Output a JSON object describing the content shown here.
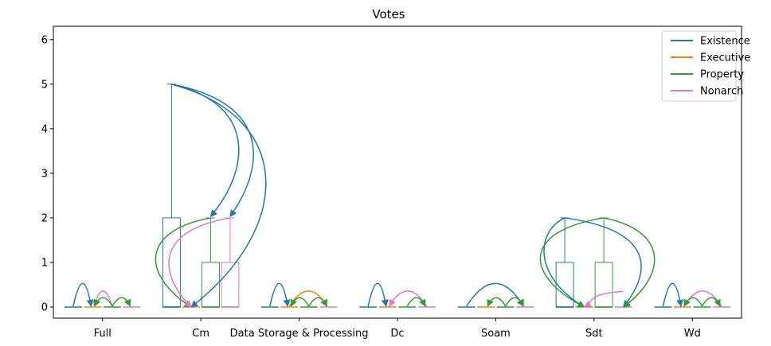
{
  "chart_data": {
    "type": "box",
    "title": "Votes",
    "categories": [
      "Full",
      "Cm",
      "Data Storage & Processing",
      "Dc",
      "Soam",
      "Sdt",
      "Wd"
    ],
    "ylim": [
      -0.25,
      6.3
    ],
    "yticks": [
      0,
      1,
      2,
      3,
      4,
      5,
      6
    ],
    "legend_position": "top-right",
    "series": [
      {
        "name": "Existence",
        "color": "#1f77b4"
      },
      {
        "name": "Executive",
        "color": "#ff7f0e"
      },
      {
        "name": "Property",
        "color": "#2ca02c"
      },
      {
        "name": "Nonarch",
        "color": "#e377c2"
      }
    ],
    "boxes": [
      {
        "category": "Cm",
        "series": "Existence",
        "q1": 0,
        "median": 0,
        "q3": 2,
        "whisker_high": 5
      },
      {
        "category": "Cm",
        "series": "Property",
        "q1": 0,
        "median": 0,
        "q3": 1,
        "whisker_high": 2
      },
      {
        "category": "Cm",
        "series": "Nonarch",
        "q1": 0,
        "median": 0,
        "q3": 1,
        "whisker_high": 2
      },
      {
        "category": "Sdt",
        "series": "Existence",
        "q1": 0,
        "median": 0,
        "q3": 1,
        "whisker_high": 2
      },
      {
        "category": "Sdt",
        "series": "Property",
        "q1": 0,
        "median": 0,
        "q3": 1,
        "whisker_high": 2
      }
    ],
    "arcs": [
      {
        "category": "Full",
        "series": "Existence",
        "from": 0,
        "to": 1,
        "height": 0.52
      },
      {
        "category": "Full",
        "series": "Nonarch",
        "from": 2,
        "to": 1,
        "height": 0.35
      },
      {
        "category": "Full",
        "series": "Property",
        "from": 2,
        "to": 1,
        "height": 0.2
      },
      {
        "category": "Full",
        "series": "Property",
        "from": 2,
        "to": 3,
        "height": 0.2
      },
      {
        "category": "Data Storage & Processing",
        "series": "Existence",
        "from": 0,
        "to": 1,
        "height": 0.52
      },
      {
        "category": "Data Storage & Processing",
        "series": "Executive",
        "from": 1,
        "to": 3,
        "height": 0.35
      },
      {
        "category": "Data Storage & Processing",
        "series": "Property",
        "from": 2,
        "to": 1,
        "height": 0.2
      },
      {
        "category": "Data Storage & Processing",
        "series": "Property",
        "from": 2,
        "to": 3,
        "height": 0.2
      },
      {
        "category": "Dc",
        "series": "Existence",
        "from": 0,
        "to": 1,
        "height": 0.52
      },
      {
        "category": "Dc",
        "series": "Nonarch",
        "from": 3,
        "to": 1,
        "height": 0.35
      },
      {
        "category": "Dc",
        "series": "Property",
        "from": 2,
        "to": 3,
        "height": 0.2
      },
      {
        "category": "Soam",
        "series": "Existence",
        "from": 0,
        "to": 3,
        "height": 0.52
      },
      {
        "category": "Soam",
        "series": "Property",
        "from": 2,
        "to": 1,
        "height": 0.2
      },
      {
        "category": "Soam",
        "series": "Property",
        "from": 2,
        "to": 3,
        "height": 0.2
      },
      {
        "category": "Wd",
        "series": "Existence",
        "from": 0,
        "to": 1,
        "height": 0.52
      },
      {
        "category": "Wd",
        "series": "Nonarch",
        "from": 3,
        "to": 1,
        "height": 0.35
      },
      {
        "category": "Wd",
        "series": "Property",
        "from": 2,
        "to": 1,
        "height": 0.2
      },
      {
        "category": "Wd",
        "series": "Property",
        "from": 2,
        "to": 3,
        "height": 0.2
      }
    ]
  }
}
